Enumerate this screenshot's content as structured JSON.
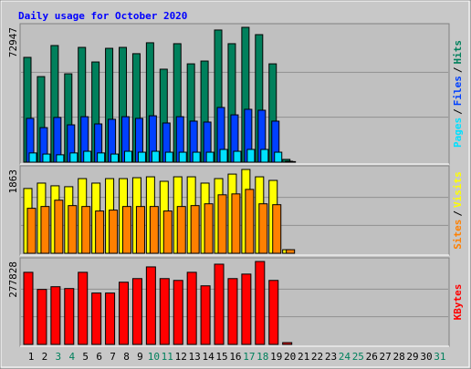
{
  "chart_data": {
    "type": "webalizer-daily",
    "title": "Daily usage for October 2020",
    "legend_separator": "/",
    "grid_divisions": 3,
    "categories": [
      "1",
      "2",
      "3",
      "4",
      "5",
      "6",
      "7",
      "8",
      "9",
      "10",
      "11",
      "12",
      "13",
      "14",
      "15",
      "16",
      "17",
      "18",
      "19",
      "20",
      "21",
      "22",
      "23",
      "24",
      "25",
      "26",
      "27",
      "28",
      "29",
      "30",
      "31"
    ],
    "category_colors": [
      "#000000",
      "#000000",
      "#00805c",
      "#00805c",
      "#000000",
      "#000000",
      "#000000",
      "#000000",
      "#000000",
      "#00805c",
      "#00805c",
      "#000000",
      "#000000",
      "#000000",
      "#000000",
      "#000000",
      "#00805c",
      "#00805c",
      "#000000",
      "#000000",
      "#000000",
      "#000000",
      "#000000",
      "#00805c",
      "#00805c",
      "#000000",
      "#000000",
      "#000000",
      "#000000",
      "#000000",
      "#00805c"
    ],
    "panels": [
      {
        "ylim": [
          0,
          72947
        ],
        "yticks": [
          72947
        ],
        "bar_width": 8,
        "bar_step": 3,
        "series": [
          {
            "name": "Hits",
            "color": "#00805c",
            "values": [
              56700,
              46300,
              63100,
              47800,
              62100,
              54200,
              61600,
              62100,
              58700,
              64600,
              50300,
              64100,
              53200,
              54700,
              71500,
              64100,
              72947,
              69000,
              53200,
              1500,
              0,
              0,
              0,
              0,
              0,
              0,
              0,
              0,
              0,
              0,
              0
            ]
          },
          {
            "name": "Files",
            "color": "#0040ff",
            "values": [
              23700,
              18700,
              24200,
              20200,
              24600,
              20700,
              23200,
              24600,
              23700,
              25100,
              21200,
              24600,
              22200,
              21700,
              29600,
              25600,
              28600,
              28100,
              22200,
              500,
              0,
              0,
              0,
              0,
              0,
              0,
              0,
              0,
              0,
              0,
              0
            ]
          },
          {
            "name": "Pages",
            "color": "#00e0ff",
            "values": [
              5000,
              4400,
              4000,
              5000,
              5900,
              5000,
              4400,
              5900,
              5400,
              5900,
              5400,
              5400,
              5400,
              5400,
              6900,
              5900,
              6900,
              6900,
              5400,
              300,
              0,
              0,
              0,
              0,
              0,
              0,
              0,
              0,
              0,
              0,
              0
            ]
          }
        ]
      },
      {
        "ylim": [
          0,
          1863
        ],
        "yticks": [
          1863
        ],
        "bar_width": 9,
        "bar_step": 4,
        "series": [
          {
            "name": "Visits",
            "color": "#ffff00",
            "values": [
              1440,
              1560,
              1500,
              1480,
              1660,
              1560,
              1660,
              1660,
              1680,
              1700,
              1600,
              1700,
              1700,
              1560,
              1660,
              1760,
              1863,
              1700,
              1620,
              80,
              0,
              0,
              0,
              0,
              0,
              0,
              0,
              0,
              0,
              0,
              0
            ]
          },
          {
            "name": "Sites",
            "color": "#ff8000",
            "values": [
              1000,
              1040,
              1180,
              1060,
              1040,
              940,
              960,
              1040,
              1040,
              1040,
              940,
              1040,
              1060,
              1100,
              1300,
              1320,
              1420,
              1100,
              1080,
              80,
              0,
              0,
              0,
              0,
              0,
              0,
              0,
              0,
              0,
              0,
              0
            ]
          }
        ]
      },
      {
        "ylim": [
          0,
          277828
        ],
        "yticks": [
          277828
        ],
        "bar_width": 10,
        "bar_step": 0,
        "series": [
          {
            "name": "KBytes",
            "color": "#ff0000",
            "values": [
              241600,
              184200,
              193300,
              187200,
              241600,
              172100,
              172100,
              208400,
              220500,
              259700,
              220500,
              214400,
              241600,
              196300,
              268800,
              220500,
              235600,
              277828,
              214400,
              6000,
              0,
              0,
              0,
              0,
              0,
              0,
              0,
              0,
              0,
              0,
              0
            ]
          }
        ]
      }
    ]
  }
}
